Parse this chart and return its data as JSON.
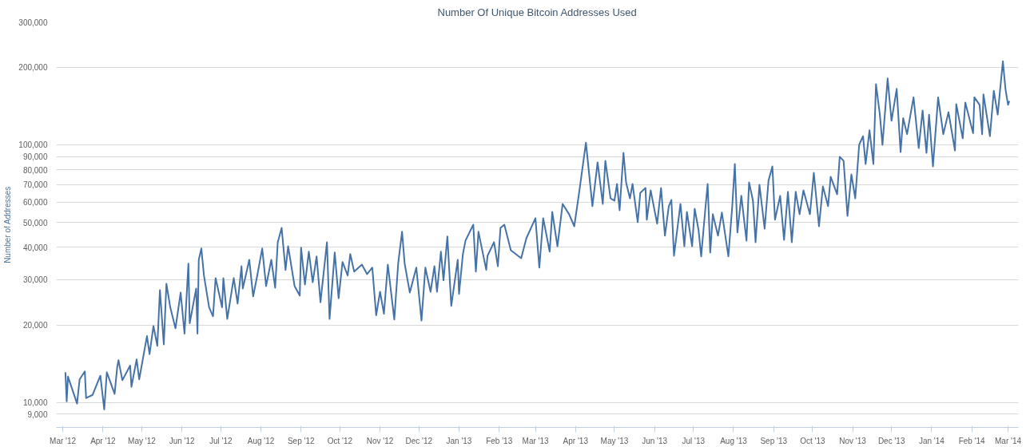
{
  "chart_data": {
    "type": "line",
    "title": "Number Of Unique Bitcoin Addresses Used",
    "ylabel": "Number of Addresses",
    "log": true,
    "grid": "y",
    "xlim": [
      "2012-02-25",
      "2014-03-09"
    ],
    "ylim": [
      8000,
      300000
    ],
    "xticks": [
      {
        "value": "2012-03-01",
        "label": "Mar '12"
      },
      {
        "value": "2012-04-01",
        "label": "Apr '12"
      },
      {
        "value": "2012-05-01",
        "label": "May '12"
      },
      {
        "value": "2012-06-01",
        "label": "Jun '12"
      },
      {
        "value": "2012-07-01",
        "label": "Jul '12"
      },
      {
        "value": "2012-08-01",
        "label": "Aug '12"
      },
      {
        "value": "2012-09-01",
        "label": "Sep '12"
      },
      {
        "value": "2012-10-01",
        "label": "Oct '12"
      },
      {
        "value": "2012-11-01",
        "label": "Nov '12"
      },
      {
        "value": "2012-12-01",
        "label": "Dec '12"
      },
      {
        "value": "2013-01-01",
        "label": "Jan '13"
      },
      {
        "value": "2013-02-01",
        "label": "Feb '13"
      },
      {
        "value": "2013-03-01",
        "label": "Mar '13"
      },
      {
        "value": "2013-04-01",
        "label": "Apr '13"
      },
      {
        "value": "2013-05-01",
        "label": "May '13"
      },
      {
        "value": "2013-06-01",
        "label": "Jun '13"
      },
      {
        "value": "2013-07-01",
        "label": "Jul '13"
      },
      {
        "value": "2013-08-01",
        "label": "Aug '13"
      },
      {
        "value": "2013-09-01",
        "label": "Sep '13"
      },
      {
        "value": "2013-10-01",
        "label": "Oct '13"
      },
      {
        "value": "2013-11-01",
        "label": "Nov '13"
      },
      {
        "value": "2013-12-01",
        "label": "Dec '13"
      },
      {
        "value": "2014-01-01",
        "label": "Jan '14"
      },
      {
        "value": "2014-02-01",
        "label": "Feb '14"
      },
      {
        "value": "2014-03-01",
        "label": "Mar '14"
      }
    ],
    "yticks": [
      {
        "value": 9000,
        "label": "9,000"
      },
      {
        "value": 10000,
        "label": "10,000"
      },
      {
        "value": 20000,
        "label": "20,000"
      },
      {
        "value": 30000,
        "label": "30,000"
      },
      {
        "value": 40000,
        "label": "40,000"
      },
      {
        "value": 50000,
        "label": "50,000"
      },
      {
        "value": 60000,
        "label": "60,000"
      },
      {
        "value": 70000,
        "label": "70,000"
      },
      {
        "value": 80000,
        "label": "80,000"
      },
      {
        "value": 90000,
        "label": "90,000"
      },
      {
        "value": 100000,
        "label": "100,000"
      },
      {
        "value": 200000,
        "label": "200,000"
      },
      {
        "value": 300000,
        "label": "300,000"
      }
    ],
    "x": [
      "2012-03-03",
      "2012-03-04",
      "2012-03-05",
      "2012-03-12",
      "2012-03-14",
      "2012-03-18",
      "2012-03-19",
      "2012-03-24",
      "2012-03-30",
      "2012-04-02",
      "2012-04-04",
      "2012-04-10",
      "2012-04-12",
      "2012-04-13",
      "2012-04-16",
      "2012-04-22",
      "2012-04-23",
      "2012-04-27",
      "2012-04-29",
      "2012-05-05",
      "2012-05-07",
      "2012-05-10",
      "2012-05-13",
      "2012-05-15",
      "2012-05-18",
      "2012-05-20",
      "2012-05-23",
      "2012-05-27",
      "2012-05-31",
      "2012-06-03",
      "2012-06-06",
      "2012-06-07",
      "2012-06-12",
      "2012-06-13",
      "2012-06-14",
      "2012-06-16",
      "2012-06-18",
      "2012-06-22",
      "2012-06-25",
      "2012-06-27",
      "2012-07-02",
      "2012-07-03",
      "2012-07-06",
      "2012-07-11",
      "2012-07-14",
      "2012-07-17",
      "2012-07-18",
      "2012-07-23",
      "2012-07-26",
      "2012-07-29",
      "2012-08-02",
      "2012-08-05",
      "2012-08-09",
      "2012-08-12",
      "2012-08-14",
      "2012-08-17",
      "2012-08-20",
      "2012-08-22",
      "2012-08-27",
      "2012-08-31",
      "2012-09-01",
      "2012-09-04",
      "2012-09-07",
      "2012-09-10",
      "2012-09-13",
      "2012-09-16",
      "2012-09-21",
      "2012-09-23",
      "2012-09-27",
      "2012-09-30",
      "2012-10-03",
      "2012-10-07",
      "2012-10-09",
      "2012-10-12",
      "2012-10-18",
      "2012-10-22",
      "2012-10-26",
      "2012-10-29",
      "2012-11-01",
      "2012-11-04",
      "2012-11-07",
      "2012-11-12",
      "2012-11-15",
      "2012-11-18",
      "2012-11-20",
      "2012-11-24",
      "2012-11-29",
      "2012-12-03",
      "2012-12-06",
      "2012-12-10",
      "2012-12-13",
      "2012-12-15",
      "2012-12-18",
      "2012-12-20",
      "2012-12-23",
      "2012-12-26",
      "2012-12-31",
      "2013-01-01",
      "2013-01-04",
      "2013-01-06",
      "2013-01-12",
      "2013-01-14",
      "2013-01-16",
      "2013-01-22",
      "2013-01-23",
      "2013-01-28",
      "2013-01-31",
      "2013-02-02",
      "2013-02-05",
      "2013-02-10",
      "2013-02-18",
      "2013-02-22",
      "2013-03-01",
      "2013-03-04",
      "2013-03-07",
      "2013-03-12",
      "2013-03-14",
      "2013-03-18",
      "2013-03-22",
      "2013-03-27",
      "2013-03-31",
      "2013-04-04",
      "2013-04-09",
      "2013-04-14",
      "2013-04-18",
      "2013-04-22",
      "2013-04-24",
      "2013-04-28",
      "2013-05-01",
      "2013-05-03",
      "2013-05-05",
      "2013-05-08",
      "2013-05-10",
      "2013-05-13",
      "2013-05-15",
      "2013-05-19",
      "2013-05-21",
      "2013-05-25",
      "2013-05-26",
      "2013-05-29",
      "2013-06-03",
      "2013-06-06",
      "2013-06-09",
      "2013-06-12",
      "2013-06-14",
      "2013-06-16",
      "2013-06-21",
      "2013-06-24",
      "2013-06-26",
      "2013-06-30",
      "2013-07-02",
      "2013-07-05",
      "2013-07-07",
      "2013-07-10",
      "2013-07-12",
      "2013-07-14",
      "2013-07-16",
      "2013-07-20",
      "2013-07-23",
      "2013-07-28",
      "2013-07-31",
      "2013-08-02",
      "2013-08-04",
      "2013-08-07",
      "2013-08-11",
      "2013-08-13",
      "2013-08-16",
      "2013-08-18",
      "2013-08-21",
      "2013-08-25",
      "2013-08-28",
      "2013-08-31",
      "2013-09-02",
      "2013-09-06",
      "2013-09-09",
      "2013-09-12",
      "2013-09-15",
      "2013-09-18",
      "2013-09-21",
      "2013-09-24",
      "2013-09-29",
      "2013-10-02",
      "2013-10-06",
      "2013-10-09",
      "2013-10-13",
      "2013-10-15",
      "2013-10-20",
      "2013-10-22",
      "2013-10-25",
      "2013-10-28",
      "2013-10-31",
      "2013-11-03",
      "2013-11-06",
      "2013-11-09",
      "2013-11-11",
      "2013-11-14",
      "2013-11-17",
      "2013-11-19",
      "2013-11-22",
      "2013-11-24",
      "2013-11-28",
      "2013-12-01",
      "2013-12-05",
      "2013-12-08",
      "2013-12-10",
      "2013-12-13",
      "2013-12-18",
      "2013-12-22",
      "2013-12-25",
      "2013-12-28",
      "2013-12-30",
      "2014-01-02",
      "2014-01-06",
      "2014-01-10",
      "2014-01-14",
      "2014-01-19",
      "2014-01-20",
      "2014-01-25",
      "2014-01-27",
      "2014-02-02",
      "2014-02-03",
      "2014-02-07",
      "2014-02-09",
      "2014-02-10",
      "2014-02-15",
      "2014-02-18",
      "2014-02-21",
      "2014-02-25",
      "2014-02-27",
      "2014-03-01",
      "2014-03-02"
    ],
    "series": [
      {
        "color": "#4572a7",
        "values": [
          13100,
          10100,
          12600,
          9900,
          12300,
          13200,
          10400,
          10700,
          12700,
          9400,
          13100,
          10800,
          13700,
          14600,
          12200,
          13900,
          11500,
          14700,
          12300,
          18100,
          15400,
          19800,
          16600,
          27300,
          16800,
          28900,
          23400,
          19400,
          26700,
          18500,
          34600,
          20300,
          27700,
          18500,
          35800,
          39600,
          31100,
          23400,
          21600,
          30400,
          23400,
          30400,
          21100,
          30400,
          24200,
          33800,
          27700,
          35800,
          25800,
          30800,
          39600,
          28300,
          35800,
          27900,
          41900,
          47600,
          32700,
          40400,
          28300,
          26000,
          39900,
          28700,
          38500,
          29300,
          36900,
          24500,
          41900,
          21100,
          38200,
          25400,
          35100,
          31100,
          37700,
          32200,
          34300,
          31500,
          33400,
          21800,
          26900,
          22100,
          34300,
          21000,
          34600,
          46000,
          34600,
          26700,
          33400,
          20800,
          33400,
          26900,
          33800,
          26900,
          38500,
          29800,
          44100,
          23700,
          35800,
          26400,
          37700,
          42500,
          49000,
          32200,
          46000,
          32700,
          37100,
          41900,
          33800,
          47600,
          49000,
          39000,
          36300,
          43400,
          51900,
          33400,
          51900,
          38500,
          54900,
          40400,
          59000,
          53800,
          48300,
          66600,
          102000,
          57800,
          85500,
          59000,
          86700,
          62000,
          60700,
          70500,
          55700,
          93100,
          71500,
          62000,
          70500,
          50100,
          65200,
          68000,
          51200,
          66600,
          49400,
          68000,
          44400,
          57800,
          61100,
          37100,
          59000,
          40400,
          54900,
          40400,
          56500,
          46600,
          36900,
          54900,
          70500,
          38200,
          53800,
          44400,
          54600,
          36900,
          57800,
          84300,
          45700,
          63400,
          42500,
          71500,
          60700,
          41900,
          70000,
          47300,
          72600,
          82500,
          51200,
          63400,
          42800,
          65700,
          41900,
          65700,
          53800,
          66600,
          53800,
          77900,
          48300,
          69000,
          57800,
          75200,
          64300,
          89900,
          86700,
          53000,
          76800,
          62000,
          100000,
          108000,
          84300,
          114000,
          84300,
          172000,
          131000,
          100000,
          181000,
          124000,
          165000,
          93800,
          127000,
          110000,
          153000,
          97200,
          136000,
          93100,
          131000,
          82500,
          153000,
          110000,
          134000,
          95100,
          144000,
          106000,
          146000,
          111000,
          153000,
          143000,
          110000,
          157000,
          108000,
          162000,
          131000,
          211000,
          165000,
          143000,
          148000
        ]
      }
    ]
  }
}
